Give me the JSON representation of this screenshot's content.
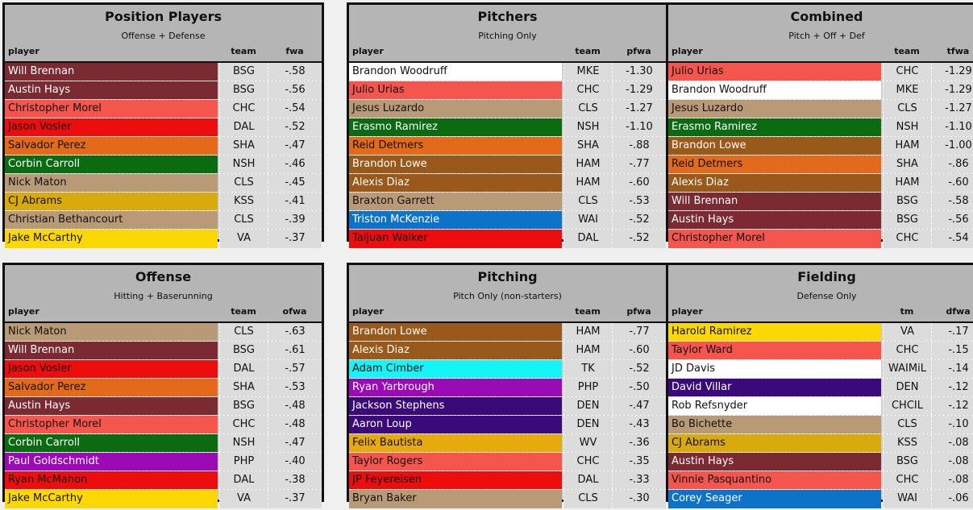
{
  "panels": [
    {
      "title": "Position Players",
      "subtitle": "Offense + Defense",
      "columns": {
        "player": "player",
        "team": "team",
        "value": "fwa"
      },
      "rows": [
        {
          "player": "Will Brennan",
          "team": "BSG",
          "value": "-.58",
          "bg": "#7a2a30",
          "fg": "#ffffff"
        },
        {
          "player": "Austin Hays",
          "team": "BSG",
          "value": "-.56",
          "bg": "#7a2a30",
          "fg": "#ffffff"
        },
        {
          "player": "Christopher Morel",
          "team": "CHC",
          "value": "-.54",
          "bg": "#f4554d",
          "fg": "#111111"
        },
        {
          "player": "Jason Vosler",
          "team": "DAL",
          "value": "-.52",
          "bg": "#ee0d0d",
          "fg": "#111111"
        },
        {
          "player": "Salvador Perez",
          "team": "SHA",
          "value": "-.47",
          "bg": "#e36a1a",
          "fg": "#111111"
        },
        {
          "player": "Corbin Carroll",
          "team": "NSH",
          "value": "-.46",
          "bg": "#0a6b11",
          "fg": "#ffffff"
        },
        {
          "player": "Nick Maton",
          "team": "CLS",
          "value": "-.45",
          "bg": "#b99a77",
          "fg": "#111111"
        },
        {
          "player": "CJ Abrams",
          "team": "KSS",
          "value": "-.41",
          "bg": "#d9aa0c",
          "fg": "#111111"
        },
        {
          "player": "Christian Bethancourt",
          "team": "CLS",
          "value": "-.39",
          "bg": "#b99a77",
          "fg": "#111111"
        },
        {
          "player": "Jake McCarthy",
          "team": "VA",
          "value": "-.37",
          "bg": "#fcd803",
          "fg": "#111111"
        }
      ]
    },
    {
      "title": "Pitchers",
      "subtitle": "Pitching Only",
      "columns": {
        "player": "player",
        "team": "team",
        "value": "pfwa"
      },
      "rows": [
        {
          "player": "Brandon Woodruff",
          "team": "MKE",
          "value": "-1.30",
          "bg": "#ffffff",
          "fg": "#111111"
        },
        {
          "player": "Julio Urias",
          "team": "CHC",
          "value": "-1.29",
          "bg": "#f4554d",
          "fg": "#111111"
        },
        {
          "player": "Jesus Luzardo",
          "team": "CLS",
          "value": "-1.27",
          "bg": "#b99a77",
          "fg": "#111111"
        },
        {
          "player": "Erasmo Ramirez",
          "team": "NSH",
          "value": "-1.10",
          "bg": "#0a6b11",
          "fg": "#ffffff"
        },
        {
          "player": "Reid Detmers",
          "team": "SHA",
          "value": "-.88",
          "bg": "#e36a1a",
          "fg": "#111111"
        },
        {
          "player": "Brandon Lowe",
          "team": "HAM",
          "value": "-.77",
          "bg": "#98591a",
          "fg": "#ffffff"
        },
        {
          "player": "Alexis Diaz",
          "team": "HAM",
          "value": "-.60",
          "bg": "#98591a",
          "fg": "#ffffff"
        },
        {
          "player": "Braxton Garrett",
          "team": "CLS",
          "value": "-.53",
          "bg": "#b99a77",
          "fg": "#111111"
        },
        {
          "player": "Triston McKenzie",
          "team": "WAI",
          "value": "-.52",
          "bg": "#0d73c9",
          "fg": "#ffffff"
        },
        {
          "player": "Taijuan Walker",
          "team": "DAL",
          "value": "-.52",
          "bg": "#ee0d0d",
          "fg": "#111111"
        }
      ]
    },
    {
      "title": "Combined",
      "subtitle": "Pitch + Off + Def",
      "columns": {
        "player": "player",
        "team": "team",
        "value": "tfwa"
      },
      "rows": [
        {
          "player": "Julio Urias",
          "team": "CHC",
          "value": "-1.29",
          "bg": "#f4554d",
          "fg": "#111111"
        },
        {
          "player": "Brandon Woodruff",
          "team": "MKE",
          "value": "-1.29",
          "bg": "#ffffff",
          "fg": "#111111"
        },
        {
          "player": "Jesus Luzardo",
          "team": "CLS",
          "value": "-1.27",
          "bg": "#b99a77",
          "fg": "#111111"
        },
        {
          "player": "Erasmo Ramirez",
          "team": "NSH",
          "value": "-1.10",
          "bg": "#0a6b11",
          "fg": "#ffffff"
        },
        {
          "player": "Brandon Lowe",
          "team": "HAM",
          "value": "-1.00",
          "bg": "#98591a",
          "fg": "#ffffff"
        },
        {
          "player": "Reid Detmers",
          "team": "SHA",
          "value": "-.86",
          "bg": "#e36a1a",
          "fg": "#111111"
        },
        {
          "player": "Alexis Diaz",
          "team": "HAM",
          "value": "-.60",
          "bg": "#98591a",
          "fg": "#ffffff"
        },
        {
          "player": "Will Brennan",
          "team": "BSG",
          "value": "-.58",
          "bg": "#7a2a30",
          "fg": "#ffffff"
        },
        {
          "player": "Austin Hays",
          "team": "BSG",
          "value": "-.56",
          "bg": "#7a2a30",
          "fg": "#ffffff"
        },
        {
          "player": "Christopher Morel",
          "team": "CHC",
          "value": "-.54",
          "bg": "#f4554d",
          "fg": "#111111"
        }
      ]
    },
    {
      "title": "Offense",
      "subtitle": "Hitting + Baserunning",
      "columns": {
        "player": "player",
        "team": "team",
        "value": "ofwa"
      },
      "rows": [
        {
          "player": "Nick Maton",
          "team": "CLS",
          "value": "-.63",
          "bg": "#b99a77",
          "fg": "#111111"
        },
        {
          "player": "Will Brennan",
          "team": "BSG",
          "value": "-.61",
          "bg": "#7a2a30",
          "fg": "#ffffff"
        },
        {
          "player": "Jason Vosler",
          "team": "DAL",
          "value": "-.57",
          "bg": "#ee0d0d",
          "fg": "#111111"
        },
        {
          "player": "Salvador Perez",
          "team": "SHA",
          "value": "-.53",
          "bg": "#e36a1a",
          "fg": "#111111"
        },
        {
          "player": "Austin Hays",
          "team": "BSG",
          "value": "-.48",
          "bg": "#7a2a30",
          "fg": "#ffffff"
        },
        {
          "player": "Christopher Morel",
          "team": "CHC",
          "value": "-.48",
          "bg": "#f4554d",
          "fg": "#111111"
        },
        {
          "player": "Corbin Carroll",
          "team": "NSH",
          "value": "-.47",
          "bg": "#0a6b11",
          "fg": "#ffffff"
        },
        {
          "player": "Paul Goldschmidt",
          "team": "PHP",
          "value": "-.40",
          "bg": "#9a0ab5",
          "fg": "#ffffff"
        },
        {
          "player": "Ryan McMahon",
          "team": "DAL",
          "value": "-.38",
          "bg": "#ee0d0d",
          "fg": "#111111"
        },
        {
          "player": "Jake McCarthy",
          "team": "VA",
          "value": "-.37",
          "bg": "#fcd803",
          "fg": "#111111"
        }
      ]
    },
    {
      "title": "Pitching",
      "subtitle": "Pitch Only (non-starters)",
      "columns": {
        "player": "player",
        "team": "team",
        "value": "pfwa"
      },
      "rows": [
        {
          "player": "Brandon Lowe",
          "team": "HAM",
          "value": "-.77",
          "bg": "#98591a",
          "fg": "#ffffff"
        },
        {
          "player": "Alexis Diaz",
          "team": "HAM",
          "value": "-.60",
          "bg": "#98591a",
          "fg": "#ffffff"
        },
        {
          "player": "Adam Cimber",
          "team": "TK",
          "value": "-.52",
          "bg": "#15f4f7",
          "fg": "#111111"
        },
        {
          "player": "Ryan Yarbrough",
          "team": "PHP",
          "value": "-.50",
          "bg": "#9a0ab5",
          "fg": "#ffffff"
        },
        {
          "player": "Jackson Stephens",
          "team": "DEN",
          "value": "-.47",
          "bg": "#3a0a7a",
          "fg": "#ffffff"
        },
        {
          "player": "Aaron Loup",
          "team": "DEN",
          "value": "-.43",
          "bg": "#3a0a7a",
          "fg": "#ffffff"
        },
        {
          "player": "Felix Bautista",
          "team": "WV",
          "value": "-.36",
          "bg": "#e6aa0c",
          "fg": "#111111"
        },
        {
          "player": "Taylor Rogers",
          "team": "CHC",
          "value": "-.35",
          "bg": "#f4554d",
          "fg": "#111111"
        },
        {
          "player": "JP Feyereisen",
          "team": "DAL",
          "value": "-.33",
          "bg": "#ee0d0d",
          "fg": "#111111"
        },
        {
          "player": "Bryan Baker",
          "team": "CLS",
          "value": "-.30",
          "bg": "#b99a77",
          "fg": "#111111"
        }
      ]
    },
    {
      "title": "Fielding",
      "subtitle": "Defense Only",
      "columns": {
        "player": "player",
        "team": "tm",
        "value": "dfwa"
      },
      "rows": [
        {
          "player": "Harold Ramirez",
          "team": "VA",
          "value": "-.17",
          "bg": "#fcd803",
          "fg": "#111111"
        },
        {
          "player": "Taylor Ward",
          "team": "CHC",
          "value": "-.15",
          "bg": "#f4554d",
          "fg": "#111111"
        },
        {
          "player": "JD Davis",
          "team": "WAIMiL",
          "value": "-.14",
          "bg": "#ffffff",
          "fg": "#111111"
        },
        {
          "player": "David Villar",
          "team": "DEN",
          "value": "-.12",
          "bg": "#3a0a7a",
          "fg": "#ffffff"
        },
        {
          "player": "Rob Refsnyder",
          "team": "CHCIL",
          "value": "-.12",
          "bg": "#ffffff",
          "fg": "#111111"
        },
        {
          "player": "Bo Bichette",
          "team": "CLS",
          "value": "-.10",
          "bg": "#b99a77",
          "fg": "#111111"
        },
        {
          "player": "CJ Abrams",
          "team": "KSS",
          "value": "-.08",
          "bg": "#d9aa0c",
          "fg": "#111111"
        },
        {
          "player": "Austin Hays",
          "team": "BSG",
          "value": "-.08",
          "bg": "#7a2a30",
          "fg": "#ffffff"
        },
        {
          "player": "Vinnie Pasquantino",
          "team": "CHC",
          "value": "-.08",
          "bg": "#f4554d",
          "fg": "#111111"
        },
        {
          "player": "Corey Seager",
          "team": "WAI",
          "value": "-.06",
          "bg": "#0d73c9",
          "fg": "#ffffff"
        }
      ]
    }
  ]
}
